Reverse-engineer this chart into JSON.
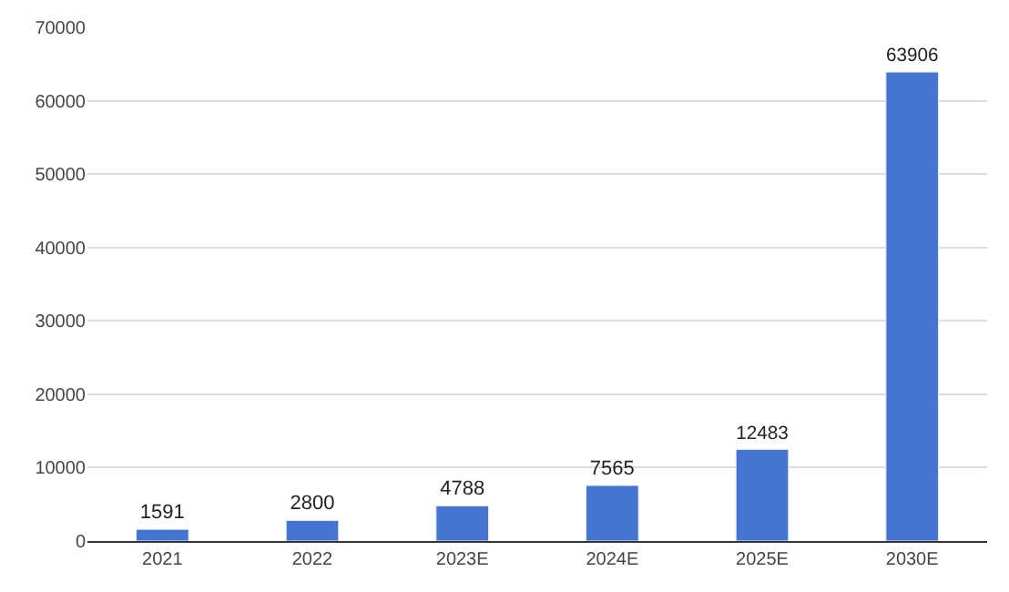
{
  "chart_data": {
    "type": "bar",
    "categories": [
      "2021",
      "2022",
      "2023E",
      "2024E",
      "2025E",
      "2030E"
    ],
    "values": [
      1591,
      2800,
      4788,
      7565,
      12483,
      63906
    ],
    "color": "#4674d1",
    "ylim": [
      0,
      70000
    ],
    "yticks": [
      0,
      10000,
      20000,
      30000,
      40000,
      50000,
      60000,
      70000
    ],
    "grid": "y",
    "data_labels": true,
    "legend": false
  }
}
